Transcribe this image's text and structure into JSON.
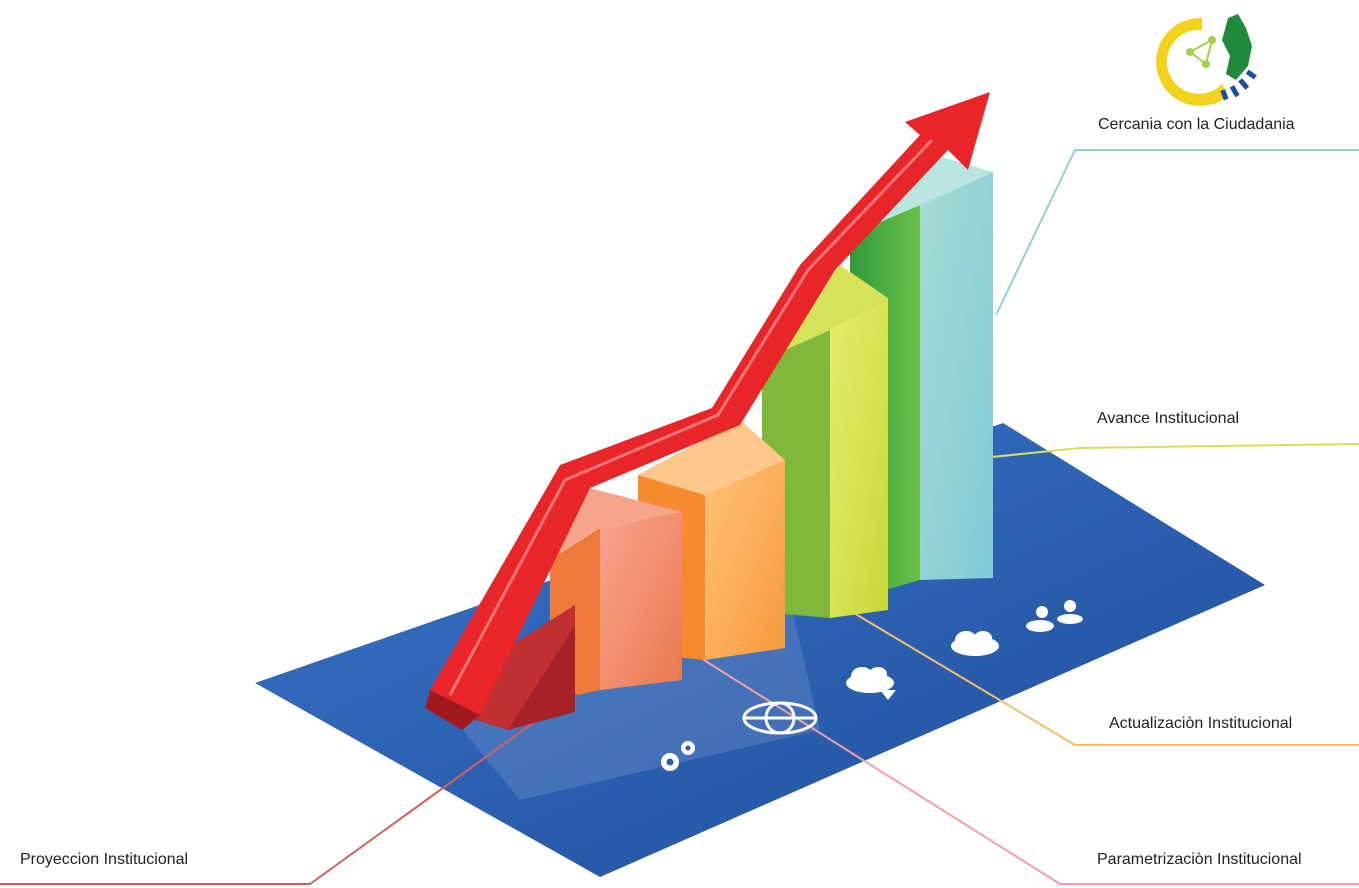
{
  "labels": {
    "cercania": "Cercania con la Ciudadania",
    "avance": "Avance Institucional",
    "actualizacion": "Actualizaciòn Institucional",
    "parametrizacion": "Parametrizaciòn Institucional",
    "proyeccion": "Proyeccion Institucional"
  },
  "colors": {
    "platform": "#2a5db0",
    "arrow": "#e8262a",
    "bar_proyeccion": "#b3262b",
    "bar_parametrizacion": "#f08a5d",
    "bar_actualizacion": "#f7a14a",
    "bar_avance": "#d6e04a",
    "bar_cercania": "#8fd0c9",
    "line_cercania": "#8fd0e0",
    "line_avance": "#d8e05a",
    "line_actualizacion": "#f5c06a",
    "line_parametrizacion": "#f0a0a8",
    "line_proyeccion": "#d06060"
  },
  "icons": [
    "gears-icon",
    "globe-icon",
    "cloud-download-icon",
    "cloud-sync-icon",
    "people-icon"
  ],
  "logo": "institution-logo"
}
